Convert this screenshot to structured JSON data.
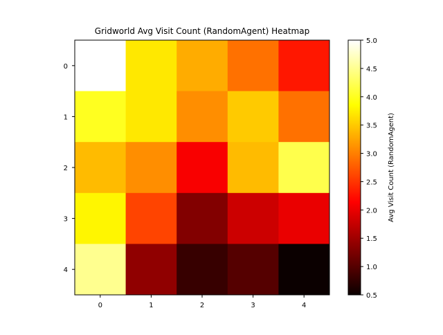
{
  "chart_data": {
    "type": "heatmap",
    "title": "Gridworld Avg Visit Count (RandomAgent) Heatmap",
    "x_ticks": [
      "0",
      "1",
      "2",
      "3",
      "4"
    ],
    "y_ticks": [
      "0",
      "1",
      "2",
      "3",
      "4"
    ],
    "values": [
      [
        5.0,
        3.7,
        3.3,
        2.9,
        2.3
      ],
      [
        4.0,
        3.7,
        3.1,
        3.5,
        2.9
      ],
      [
        3.4,
        3.1,
        2.1,
        3.4,
        4.2
      ],
      [
        3.8,
        2.6,
        1.3,
        1.8,
        2.0
      ],
      [
        4.5,
        1.4,
        0.8,
        1.0,
        0.5
      ]
    ],
    "colormap": "hot",
    "vmin": 0.5,
    "vmax": 5.0,
    "colorbar": {
      "label": "Avg Visit Count (RandomAgent)",
      "ticks": [
        "0.5",
        "1.0",
        "1.5",
        "2.0",
        "2.5",
        "3.0",
        "3.5",
        "4.0",
        "4.5",
        "5.0"
      ],
      "tick_values": [
        0.5,
        1.0,
        1.5,
        2.0,
        2.5,
        3.0,
        3.5,
        4.0,
        4.5,
        5.0
      ]
    }
  }
}
